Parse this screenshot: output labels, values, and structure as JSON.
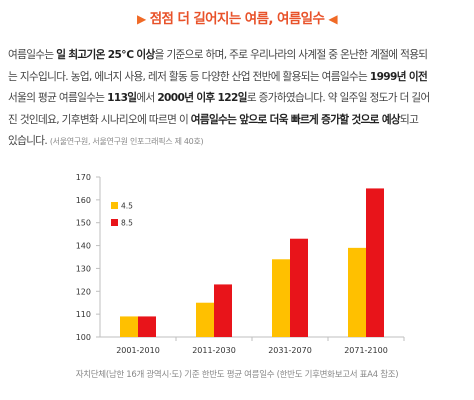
{
  "page": {
    "title": "점점 더 길어지는 여름, 여름일수",
    "title_left_icon": "triangle-right-icon",
    "title_right_icon": "triangle-left-icon",
    "accent_color": "#e8522a",
    "paragraph": {
      "p1": "여름일수는 ",
      "p2": "일 최고기온 25℃ 이상",
      "p3": "을 기준으로 하며, 주로 우리나라의 사계절 중 온난한 계절에 적용되",
      "p4": "는 지수입니다. 농업, 에너지 사용, 레저 활동 등 다양한 산업 전반에 활용되는 여름일수는 ",
      "p5": "1999년 이전",
      "p6": "서울의 평균 여름일수는 ",
      "p7": "113일",
      "p8": "에서 ",
      "p9": "2000년 이후 122일",
      "p10": "로 증가하였습니다. 약 일주일 정도가 더 길어",
      "p11": "진 것인데요, 기후변화 시나리오에 따르면 이 ",
      "p12": "여름일수는 앞으로 더욱 빠르게 증가할 것으로 예상",
      "p13": "되고",
      "p14": "있습니다.",
      "source": "(서울연구원, 서울연구원 인포그래픽스 제 40호)"
    },
    "caption": "자치단체(남한 16개 광역시·도) 기준 한반도 평균 여름일수 (한반도 기후변화보고서 표A4 참조)"
  },
  "chart_data": {
    "type": "bar",
    "title": "",
    "xlabel": "",
    "ylabel": "",
    "categories": [
      "2001-2010",
      "2011-2030",
      "2031-2070",
      "2071-2100"
    ],
    "series": [
      {
        "name": "4.5",
        "color": "#ffc000",
        "values": [
          109,
          115,
          134,
          139
        ]
      },
      {
        "name": "8.5",
        "color": "#e8141a",
        "values": [
          109,
          123,
          143,
          165
        ]
      }
    ],
    "ylim": [
      100,
      170
    ],
    "yticks": [
      100,
      110,
      120,
      130,
      140,
      150,
      160,
      170
    ],
    "grid": false,
    "legend": "top-left"
  }
}
